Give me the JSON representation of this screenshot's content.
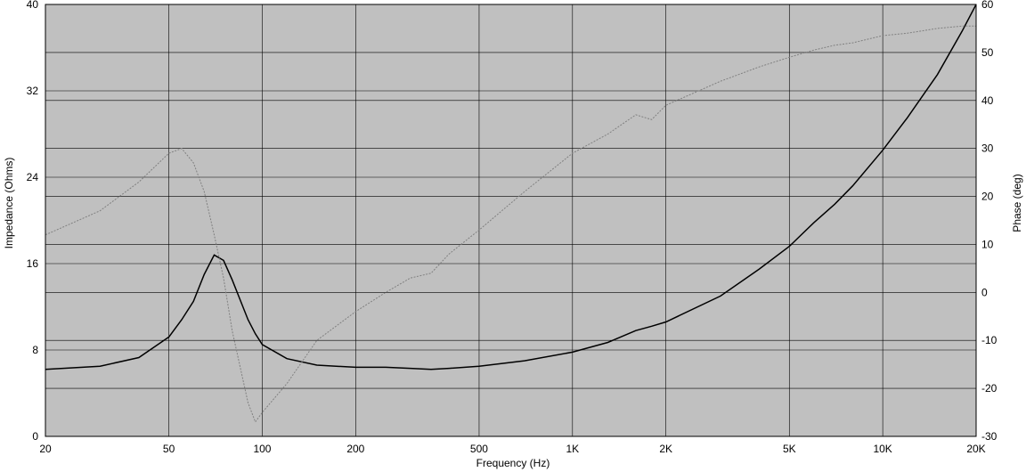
{
  "chart_data": {
    "type": "line",
    "x_label": "Frequency (Hz)",
    "y_label": "Impedance (Ohms)",
    "y2_label": "Phase (deg)",
    "xscale": "log",
    "grid": true,
    "background": "#c0c0c0",
    "x": [
      20,
      30,
      40,
      50,
      55,
      60,
      65,
      70,
      75,
      80,
      90,
      95,
      100,
      120,
      150,
      200,
      250,
      300,
      350,
      400,
      500,
      700,
      1000,
      1300,
      1600,
      1800,
      2000,
      3000,
      4000,
      5000,
      6000,
      7000,
      8000,
      10000,
      12000,
      15000,
      18000,
      20000
    ],
    "series": [
      {
        "color": "#000000",
        "axis": "y",
        "values": [
          6.2,
          6.5,
          7.3,
          9.2,
          10.8,
          12.5,
          15.0,
          16.8,
          16.3,
          14.5,
          10.8,
          9.5,
          8.5,
          7.2,
          6.6,
          6.4,
          6.4,
          6.3,
          6.2,
          6.3,
          6.5,
          7.0,
          7.8,
          8.7,
          9.8,
          10.2,
          10.6,
          13.0,
          15.5,
          17.6,
          19.8,
          21.5,
          23.2,
          26.5,
          29.5,
          33.5,
          37.5,
          40
        ]
      },
      {
        "color": "#808080",
        "axis": "y2",
        "values": [
          12,
          17,
          23,
          29,
          30,
          27,
          21,
          12,
          3,
          -8,
          -23,
          -27,
          -25,
          -19,
          -10,
          -4,
          0,
          3,
          4,
          8,
          13,
          21,
          29,
          33,
          37,
          36,
          39,
          44,
          47,
          49,
          50.5,
          51.5,
          52,
          53.5,
          54,
          55,
          55.5,
          55.5
        ]
      }
    ],
    "xlim": [
      20,
      20000
    ],
    "xticks": [
      20,
      50,
      100,
      200,
      500,
      {
        "value": 1000,
        "label": "1K"
      },
      {
        "value": 2000,
        "label": "2K"
      },
      {
        "value": 5000,
        "label": "5K"
      },
      {
        "value": 10000,
        "label": "10K"
      },
      {
        "value": 20000,
        "label": "20K"
      }
    ],
    "ylim": [
      0,
      40
    ],
    "yticks": [
      0,
      8,
      16,
      24,
      32,
      40
    ],
    "y2lim": [
      -30,
      60
    ],
    "y2ticks": [
      -30,
      -20,
      -10,
      0,
      10,
      20,
      30,
      40,
      50,
      60
    ]
  }
}
